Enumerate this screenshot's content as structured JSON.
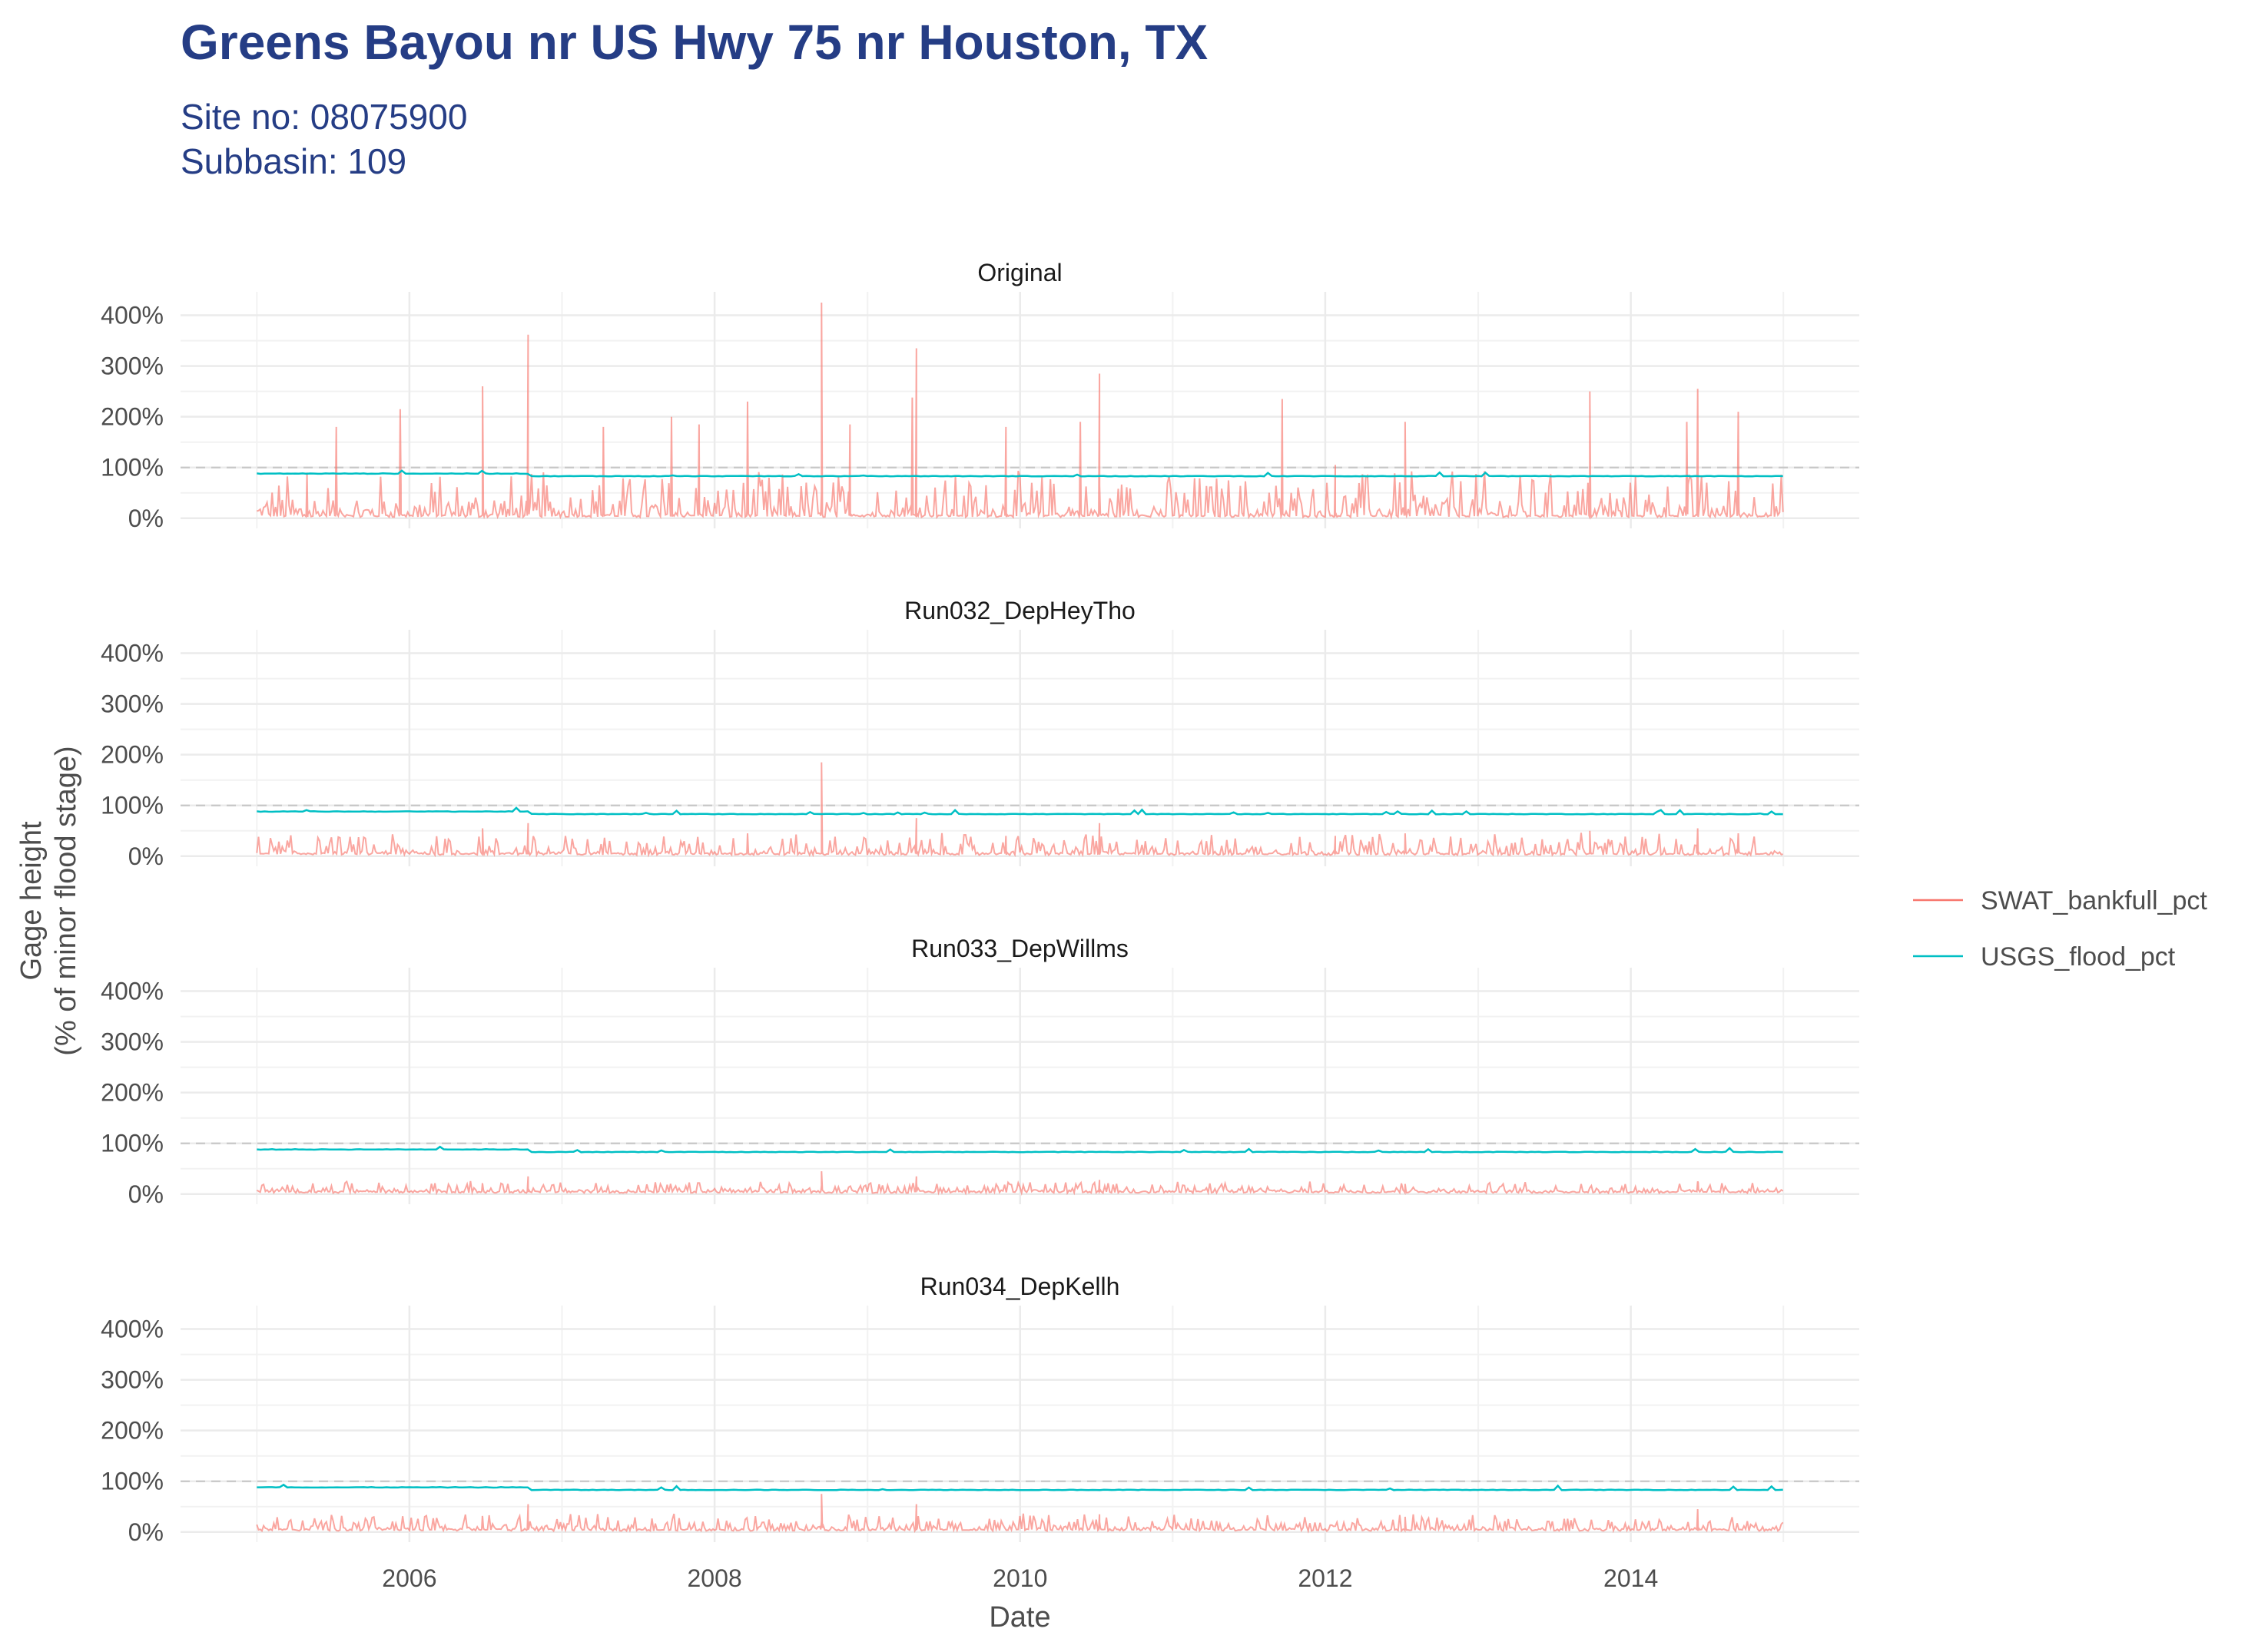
{
  "title": "Greens Bayou nr US Hwy 75 nr Houston, TX",
  "subtitle_lines": [
    "Site no: 08075900",
    "Subbasin: 109"
  ],
  "chart_data": {
    "type": "line",
    "facets": [
      {
        "label": "Original",
        "usgs_level": 0.88,
        "usgs_after_2006_10": 0.83,
        "peaks": [
          [
            "2005-07-10",
            1.8
          ],
          [
            "2005-05-01",
            0.9
          ],
          [
            "2005-12-10",
            2.15
          ],
          [
            "2006-06-25",
            2.6
          ],
          [
            "2006-10-12",
            3.62
          ],
          [
            "2007-04-10",
            1.8
          ],
          [
            "2007-09-20",
            2.0
          ],
          [
            "2007-11-25",
            1.85
          ],
          [
            "2008-03-20",
            2.3
          ],
          [
            "2008-09-13",
            4.25
          ],
          [
            "2008-11-20",
            1.85
          ],
          [
            "2009-04-18",
            2.38
          ],
          [
            "2009-04-28",
            3.35
          ],
          [
            "2009-11-28",
            1.8
          ],
          [
            "2010-05-25",
            1.9
          ],
          [
            "2010-07-10",
            2.85
          ],
          [
            "2011-09-20",
            2.35
          ],
          [
            "2012-01-25",
            1.05
          ],
          [
            "2012-07-10",
            1.9
          ],
          [
            "2013-09-25",
            2.5
          ],
          [
            "2014-05-15",
            1.9
          ],
          [
            "2014-06-10",
            2.55
          ],
          [
            "2014-09-15",
            2.1
          ]
        ]
      },
      {
        "label": "Run032_DepHeyTho",
        "usgs_level": 0.88,
        "usgs_after_2006_10": 0.83,
        "peaks": [
          [
            "2006-06-25",
            0.55
          ],
          [
            "2006-10-12",
            0.65
          ],
          [
            "2008-03-20",
            0.45
          ],
          [
            "2008-09-13",
            1.85
          ],
          [
            "2009-04-28",
            0.75
          ],
          [
            "2009-11-28",
            0.4
          ],
          [
            "2010-07-10",
            0.65
          ],
          [
            "2012-01-25",
            0.4
          ],
          [
            "2012-07-10",
            0.45
          ],
          [
            "2013-09-25",
            0.5
          ],
          [
            "2014-06-10",
            0.55
          ],
          [
            "2014-09-15",
            0.45
          ]
        ]
      },
      {
        "label": "Run033_DepWillms",
        "usgs_level": 0.88,
        "usgs_after_2006_10": 0.83,
        "peaks": [
          [
            "2006-06-25",
            0.2
          ],
          [
            "2006-10-12",
            0.35
          ],
          [
            "2008-09-13",
            0.45
          ],
          [
            "2009-04-28",
            0.35
          ],
          [
            "2010-07-10",
            0.28
          ],
          [
            "2012-07-10",
            0.2
          ],
          [
            "2014-06-10",
            0.25
          ]
        ]
      },
      {
        "label": "Run034_DepKellh",
        "usgs_level": 0.88,
        "usgs_after_2006_10": 0.83,
        "peaks": [
          [
            "2006-06-25",
            0.3
          ],
          [
            "2006-10-12",
            0.55
          ],
          [
            "2008-09-13",
            0.75
          ],
          [
            "2009-04-28",
            0.55
          ],
          [
            "2010-07-10",
            0.35
          ],
          [
            "2012-07-10",
            0.3
          ],
          [
            "2014-06-10",
            0.45
          ]
        ]
      }
    ],
    "series": [
      {
        "name": "SWAT_bankfull_pct",
        "color": "#F8766D"
      },
      {
        "name": "USGS_flood_pct",
        "color": "#00BFC4"
      }
    ],
    "x_range": [
      "2005-01-01",
      "2014-12-31"
    ],
    "x_ticks": [
      "2006",
      "2008",
      "2010",
      "2012",
      "2014"
    ],
    "y_ticks": [
      "0%",
      "100%",
      "200%",
      "300%",
      "400%"
    ],
    "ylim": [
      0,
      4.25
    ],
    "reference_line": 1.0,
    "xlabel": "Date",
    "ylabel_lines": [
      "Gage height",
      "(% of minor flood stage)"
    ],
    "legend_position": "right",
    "grid": true
  }
}
